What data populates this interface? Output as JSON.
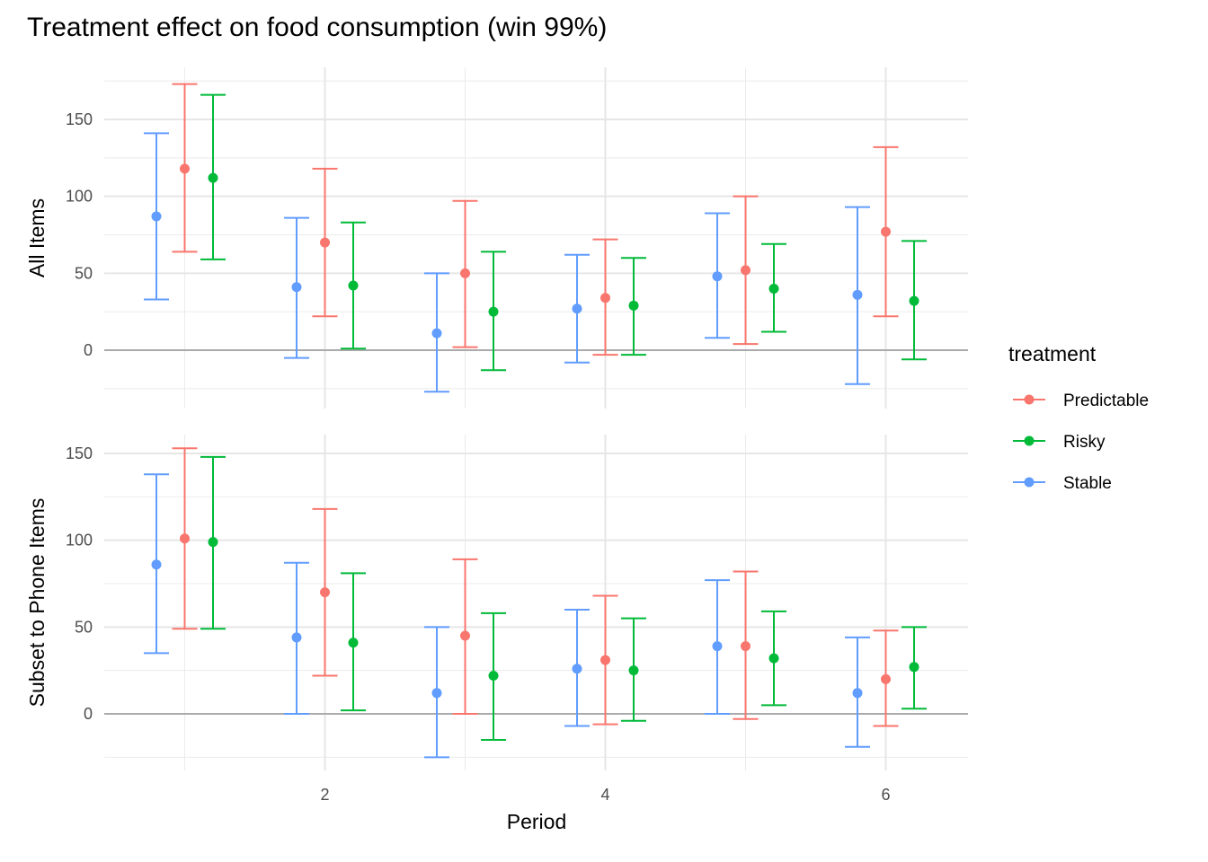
{
  "chart_data": {
    "type": "errorbar",
    "title": "Treatment effect on food consumption (win 99%)",
    "xlabel": "Period",
    "x_ticks": [
      2,
      4,
      6
    ],
    "xlim": [
      0.4,
      6.6
    ],
    "x": [
      1,
      2,
      3,
      4,
      5,
      6
    ],
    "grid": true,
    "legend": {
      "title": "treatment",
      "placement": "right",
      "entries": [
        {
          "name": "Predictable",
          "color": "#F8766D"
        },
        {
          "name": "Risky",
          "color": "#00BA38"
        },
        {
          "name": "Stable",
          "color": "#619CFF"
        }
      ]
    },
    "dodge_order": [
      "Stable",
      "Predictable",
      "Risky"
    ],
    "panels": [
      {
        "ylabel": "All Items",
        "ylim": [
          -25,
          175
        ],
        "y_ticks": [
          0,
          50,
          100,
          150
        ],
        "series": [
          {
            "name": "Stable",
            "estimate": [
              87,
              41,
              11,
              27,
              48,
              36
            ],
            "upper": [
              141,
              86,
              50,
              62,
              89,
              93
            ],
            "lower": [
              33,
              -5,
              -27,
              -8,
              8,
              -22
            ]
          },
          {
            "name": "Predictable",
            "estimate": [
              118,
              70,
              50,
              34,
              52,
              77
            ],
            "upper": [
              173,
              118,
              97,
              72,
              100,
              132
            ],
            "lower": [
              64,
              22,
              2,
              -3,
              4,
              22
            ]
          },
          {
            "name": "Risky",
            "estimate": [
              112,
              42,
              25,
              29,
              40,
              32
            ],
            "upper": [
              166,
              83,
              64,
              60,
              69,
              71
            ],
            "lower": [
              59,
              1,
              -13,
              -3,
              12,
              -6
            ]
          }
        ]
      },
      {
        "ylabel": "Subset to Phone Items",
        "ylim": [
          -25,
          160
        ],
        "y_ticks": [
          0,
          50,
          100,
          150
        ],
        "series": [
          {
            "name": "Stable",
            "estimate": [
              86,
              44,
              12,
              26,
              39,
              12
            ],
            "upper": [
              138,
              87,
              50,
              60,
              77,
              44
            ],
            "lower": [
              35,
              0,
              -25,
              -7,
              0,
              -19
            ]
          },
          {
            "name": "Predictable",
            "estimate": [
              101,
              70,
              45,
              31,
              39,
              20
            ],
            "upper": [
              153,
              118,
              89,
              68,
              82,
              48
            ],
            "lower": [
              49,
              22,
              0,
              -6,
              -3,
              -7
            ]
          },
          {
            "name": "Risky",
            "estimate": [
              99,
              41,
              22,
              25,
              32,
              27
            ],
            "upper": [
              148,
              81,
              58,
              55,
              59,
              50
            ],
            "lower": [
              49,
              2,
              -15,
              -4,
              5,
              3
            ]
          }
        ]
      }
    ]
  }
}
